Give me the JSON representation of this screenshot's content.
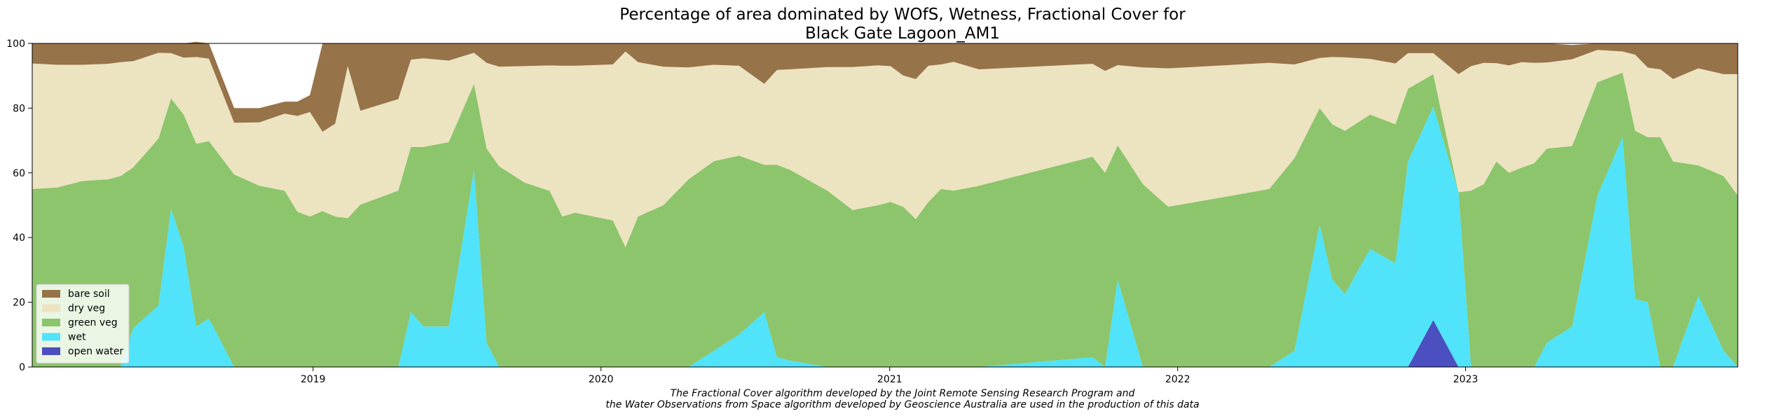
{
  "chart_data": {
    "type": "area",
    "stacked": true,
    "title_lines": [
      "Percentage of area dominated by WOfS, Wetness, Fractional Cover for",
      "Black Gate Lagoon_AM1"
    ],
    "xlabel": "",
    "ylabel": "",
    "ylim": [
      0,
      100
    ],
    "xlim": [
      "2018-01-10",
      "2023-12-12"
    ],
    "x_ticks": [
      "2019",
      "2020",
      "2021",
      "2022",
      "2023"
    ],
    "y_ticks": [
      "0",
      "20",
      "40",
      "60",
      "80",
      "100"
    ],
    "grid": false,
    "legend_position": "lower-left",
    "caption_lines": [
      "The Fractional Cover algorithm developed by the Joint Remote Sensing Research Program and",
      "the Water Observations from Space algorithm developed by Geoscience Australia are used in the production of this data"
    ],
    "x": [
      "2018-01-10",
      "2018-02-11",
      "2018-03-15",
      "2018-04-16",
      "2018-05-02",
      "2018-05-18",
      "2018-06-19",
      "2018-07-05",
      "2018-07-21",
      "2018-08-06",
      "2018-08-22",
      "2018-09-23",
      "2018-10-25",
      "2018-11-26",
      "2018-12-12",
      "2018-12-28",
      "2019-01-13",
      "2019-01-29",
      "2019-02-14",
      "2019-03-02",
      "2019-04-19",
      "2019-05-05",
      "2019-05-21",
      "2019-06-22",
      "2019-07-24",
      "2019-08-09",
      "2019-08-25",
      "2019-09-26",
      "2019-10-28",
      "2019-11-13",
      "2019-11-29",
      "2020-01-16",
      "2020-02-01",
      "2020-02-17",
      "2020-03-20",
      "2020-04-21",
      "2020-05-23",
      "2020-06-24",
      "2020-07-26",
      "2020-08-11",
      "2020-08-27",
      "2020-10-14",
      "2020-11-15",
      "2020-12-17",
      "2021-01-02",
      "2021-01-18",
      "2021-02-03",
      "2021-02-19",
      "2021-03-07",
      "2021-03-23",
      "2021-04-24",
      "2021-09-15",
      "2021-10-01",
      "2021-10-17",
      "2021-11-18",
      "2021-12-20",
      "2022-04-27",
      "2022-05-29",
      "2022-06-30",
      "2022-07-16",
      "2022-08-01",
      "2022-09-02",
      "2022-10-04",
      "2022-10-20",
      "2022-11-21",
      "2022-12-23",
      "2023-01-08",
      "2023-01-24",
      "2023-02-09",
      "2023-02-25",
      "2023-03-13",
      "2023-03-29",
      "2023-04-14",
      "2023-05-16",
      "2023-06-17",
      "2023-07-19",
      "2023-08-04",
      "2023-08-20",
      "2023-09-05",
      "2023-09-21",
      "2023-10-23",
      "2023-11-24",
      "2023-12-12"
    ],
    "series": [
      {
        "name": "open water",
        "color": "#4b4fc0",
        "values": [
          0,
          0,
          0,
          0,
          0,
          0,
          0,
          0,
          0,
          0,
          0,
          0,
          0,
          0,
          0,
          0,
          0,
          0,
          0,
          0,
          0,
          0,
          0,
          0,
          0,
          0,
          0,
          0,
          0,
          0,
          0,
          0,
          0,
          0,
          0,
          0,
          0,
          0,
          0,
          0,
          0,
          0,
          0,
          0,
          0,
          0,
          0,
          0,
          0,
          0,
          0,
          0,
          0,
          0,
          0,
          0,
          0,
          0,
          0,
          0,
          0,
          0,
          0,
          0,
          14.5,
          0,
          0,
          0,
          0,
          0,
          0,
          0,
          0,
          0,
          0,
          0,
          0,
          0,
          0,
          0,
          0,
          0,
          0
        ]
      },
      {
        "name": "wet",
        "color": "#50e3f9",
        "values": [
          0,
          0,
          0,
          0,
          0,
          12,
          19,
          49,
          37,
          12.5,
          15,
          0,
          0,
          0,
          0,
          0,
          0,
          0,
          0,
          0,
          0,
          17,
          12.5,
          12.5,
          61,
          7.5,
          0,
          0,
          0,
          0,
          0,
          0,
          0,
          0,
          0,
          0,
          5,
          10,
          17,
          3,
          2,
          0,
          0,
          0,
          0,
          0,
          0,
          0,
          0,
          0,
          0,
          3,
          0,
          27,
          0,
          0,
          0,
          5,
          44,
          27,
          22.5,
          36.5,
          32,
          63.5,
          66,
          54,
          0,
          0,
          0,
          0,
          0,
          0,
          7.5,
          12.5,
          53,
          71,
          21,
          20,
          0,
          0,
          22,
          5,
          0
        ]
      },
      {
        "name": "green veg",
        "color": "#8cc56b",
        "values": [
          55,
          55.5,
          57.5,
          58,
          59,
          49.7,
          51.6,
          34,
          41,
          56.5,
          54.8,
          59.5,
          56,
          54.5,
          48,
          46.5,
          48.2,
          46.5,
          46,
          50.2,
          54.5,
          51,
          55.5,
          57,
          26.5,
          60,
          62,
          57,
          54.4,
          46.5,
          47.7,
          45.3,
          37,
          46.5,
          50,
          58,
          58.6,
          55.3,
          45.5,
          59.5,
          59,
          54.5,
          48.5,
          50,
          51,
          49.5,
          45.7,
          51,
          55,
          54.5,
          56,
          62,
          60,
          41.5,
          56.5,
          49.5,
          55,
          59.5,
          36,
          48,
          50.5,
          41.5,
          43,
          22.5,
          10,
          0,
          54.5,
          56.5,
          63.5,
          60,
          61.6,
          63,
          60,
          55.8,
          35,
          20,
          52,
          51,
          71,
          63.5,
          40.3,
          54,
          53
        ]
      },
      {
        "name": "dry veg",
        "color": "#ece3c1",
        "values": [
          38.8,
          37.9,
          35.9,
          35.7,
          35.2,
          32.8,
          26.5,
          14,
          17.6,
          26.8,
          25.5,
          16,
          19.6,
          23.8,
          29.6,
          32.3,
          24.5,
          28.7,
          47,
          29,
          28.3,
          27,
          27.4,
          25.2,
          9.6,
          26.5,
          30.8,
          36,
          38.8,
          46.6,
          45.4,
          48.2,
          60.5,
          47.7,
          42.8,
          34.6,
          29.8,
          27.8,
          25,
          29.3,
          31,
          38.2,
          44.2,
          43.2,
          42,
          40.6,
          43.3,
          42.1,
          38.5,
          39.8,
          36,
          28.7,
          31.5,
          24.8,
          36.1,
          42.8,
          39,
          29,
          15.5,
          20.8,
          22.7,
          17.2,
          18.8,
          11,
          6.5,
          36.5,
          38.5,
          37.5,
          30.4,
          33.2,
          32.6,
          31,
          26.6,
          26.8,
          10,
          6.5,
          23.5,
          21.5,
          21,
          25.5,
          30,
          31.5,
          37.5
        ]
      },
      {
        "name": "bare soil",
        "color": "#977349",
        "values": [
          6.2,
          6.6,
          6.6,
          6.3,
          5.8,
          5.5,
          2.9,
          3,
          4.4,
          4.7,
          4.7,
          4.5,
          4.4,
          3.7,
          4.4,
          5.2,
          27.3,
          24.8,
          7,
          20.8,
          17.2,
          5,
          4.6,
          5.3,
          2.9,
          6,
          7.2,
          7,
          6.8,
          6.9,
          6.9,
          6.5,
          2.5,
          5.8,
          7.2,
          7.4,
          6.6,
          6.9,
          12.5,
          8.2,
          8,
          7.3,
          7.3,
          6.8,
          7,
          9.9,
          11,
          6.9,
          6.5,
          5.7,
          8,
          6.3,
          8.5,
          6.7,
          7.4,
          7.7,
          6,
          6.5,
          4.5,
          4.2,
          4.3,
          4.8,
          6.2,
          3,
          3,
          9.5,
          7,
          6,
          6.1,
          6.8,
          5.8,
          6,
          5.9,
          4.4,
          2,
          2.5,
          3.5,
          7.5,
          8,
          11,
          7.7,
          9.5,
          9.5
        ]
      }
    ]
  }
}
